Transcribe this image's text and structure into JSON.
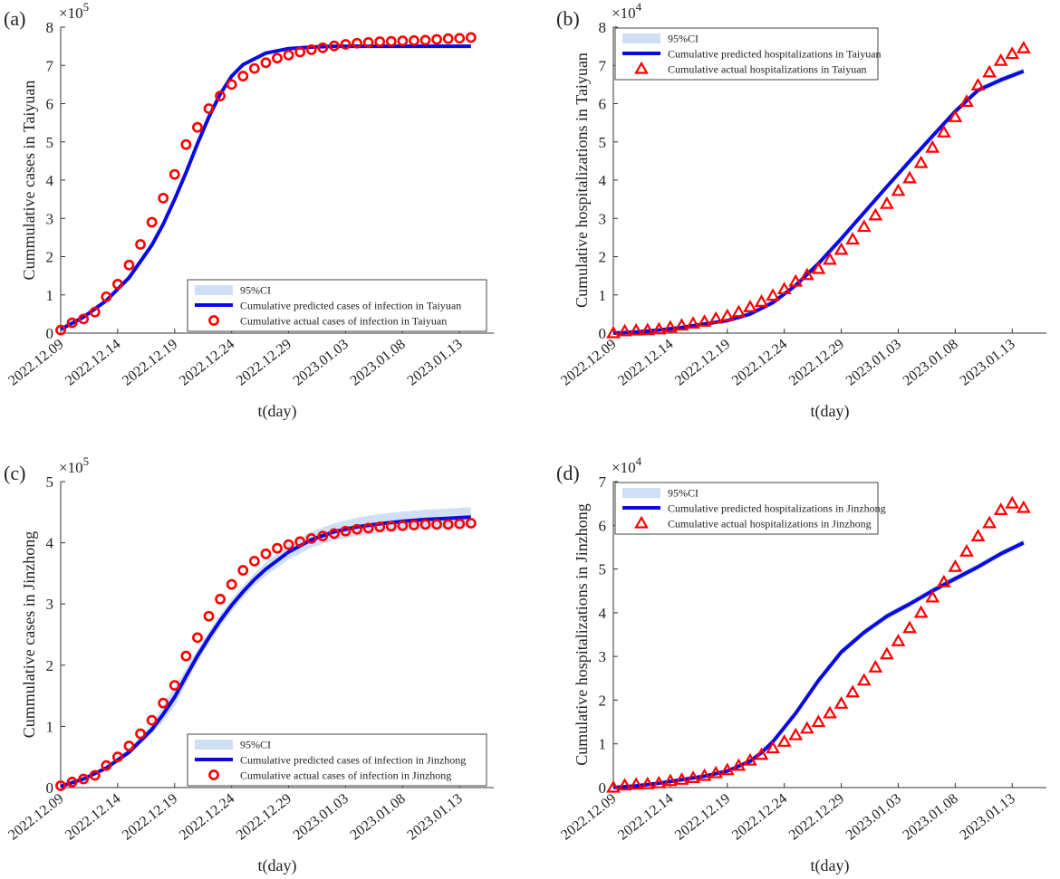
{
  "chart_data": [
    {
      "id": "a",
      "panel_label": "(a)",
      "type": "line",
      "x_tick_labels": [
        "2022.12.09",
        "2022.12.14",
        "2022.12.19",
        "2022.12.24",
        "2022.12.29",
        "2023.01.03",
        "2023.01.08",
        "2023.01.13"
      ],
      "xlabel": "t(day)",
      "ylabel": "Cummulative cases in Taiyuan",
      "ylim": [
        0,
        8
      ],
      "y_ticks": [
        0,
        1,
        2,
        3,
        4,
        5,
        6,
        7,
        8
      ],
      "x_range": [
        0,
        38
      ],
      "scale_label": "×10",
      "scale_exp": "5",
      "marker": "circle",
      "legend_position": "bottom-right",
      "legend": {
        "ci": "95%CI",
        "predicted": "Cumulative predicted cases of infection in Taiyuan",
        "actual": "Cumulative actual cases of infection in Taiyuan"
      },
      "series": [
        {
          "name": "predicted",
          "x": [
            0,
            2,
            4,
            6,
            8,
            9,
            10,
            11,
            12,
            13,
            14,
            15,
            16,
            18,
            20,
            22,
            24,
            26,
            28,
            30,
            32,
            34,
            36
          ],
          "values": [
            0.1,
            0.42,
            0.85,
            1.45,
            2.3,
            2.85,
            3.5,
            4.2,
            4.95,
            5.65,
            6.25,
            6.72,
            7.02,
            7.32,
            7.44,
            7.48,
            7.5,
            7.5,
            7.5,
            7.5,
            7.5,
            7.5,
            7.5
          ]
        },
        {
          "name": "ci_upper",
          "x": [
            0,
            2,
            4,
            6,
            8,
            9,
            10,
            11,
            12,
            13,
            14,
            15,
            16,
            18,
            20,
            22,
            24,
            26,
            28,
            30,
            32,
            34,
            36
          ],
          "values": [
            0.12,
            0.46,
            0.9,
            1.52,
            2.38,
            2.93,
            3.58,
            4.28,
            5.03,
            5.72,
            6.32,
            6.78,
            7.07,
            7.36,
            7.48,
            7.53,
            7.55,
            7.55,
            7.55,
            7.55,
            7.55,
            7.55,
            7.55
          ]
        },
        {
          "name": "ci_lower",
          "x": [
            0,
            2,
            4,
            6,
            8,
            9,
            10,
            11,
            12,
            13,
            14,
            15,
            16,
            18,
            20,
            22,
            24,
            26,
            28,
            30,
            32,
            34,
            36
          ],
          "values": [
            0.08,
            0.38,
            0.8,
            1.38,
            2.22,
            2.77,
            3.42,
            4.12,
            4.87,
            5.58,
            6.18,
            6.66,
            6.97,
            7.28,
            7.4,
            7.44,
            7.46,
            7.46,
            7.46,
            7.46,
            7.46,
            7.46,
            7.46
          ]
        },
        {
          "name": "actual",
          "x": [
            0,
            1,
            2,
            3,
            4,
            5,
            6,
            7,
            8,
            9,
            10,
            11,
            12,
            13,
            14,
            15,
            16,
            17,
            18,
            19,
            20,
            21,
            22,
            23,
            24,
            25,
            26,
            27,
            28,
            29,
            30,
            31,
            32,
            33,
            34,
            35,
            36
          ],
          "values": [
            0.08,
            0.27,
            0.37,
            0.55,
            0.95,
            1.28,
            1.78,
            2.32,
            2.9,
            3.53,
            4.15,
            4.93,
            5.38,
            5.87,
            6.2,
            6.5,
            6.72,
            6.92,
            7.07,
            7.19,
            7.27,
            7.35,
            7.41,
            7.46,
            7.51,
            7.55,
            7.58,
            7.6,
            7.62,
            7.63,
            7.64,
            7.65,
            7.66,
            7.68,
            7.7,
            7.71,
            7.73
          ]
        }
      ]
    },
    {
      "id": "b",
      "panel_label": "(b)",
      "type": "line",
      "x_tick_labels": [
        "2022.12.09",
        "2022.12.14",
        "2022.12.19",
        "2022.12.24",
        "2022.12.29",
        "2023.01.03",
        "2023.01.08",
        "2023.01.13"
      ],
      "xlabel": "t(day)",
      "ylabel": "Cumulative hospitalizations in Taiyuan",
      "ylim": [
        0,
        8
      ],
      "y_ticks": [
        0,
        1,
        2,
        3,
        4,
        5,
        6,
        7,
        8
      ],
      "x_range": [
        0,
        38
      ],
      "scale_label": "×10",
      "scale_exp": "4",
      "marker": "triangle",
      "legend_position": "top-left",
      "legend": {
        "ci": "95%CI",
        "predicted": "Cumulative predicted hospitalizations in Taiyuan",
        "actual": "Cumulative actual hospitalizations in Taiyuan"
      },
      "series": [
        {
          "name": "predicted",
          "x": [
            0,
            2,
            4,
            6,
            8,
            10,
            12,
            14,
            16,
            18,
            20,
            22,
            24,
            26,
            28,
            30,
            32,
            34,
            36
          ],
          "values": [
            0.0,
            0.03,
            0.08,
            0.15,
            0.24,
            0.33,
            0.5,
            0.8,
            1.25,
            1.82,
            2.47,
            3.15,
            3.83,
            4.5,
            5.15,
            5.8,
            6.35,
            6.62,
            6.85
          ]
        },
        {
          "name": "ci_upper",
          "x": [
            0,
            2,
            4,
            6,
            8,
            10,
            12,
            14,
            16,
            18,
            20,
            22,
            24,
            26,
            28,
            30,
            32,
            34,
            36
          ],
          "values": [
            0.0,
            0.04,
            0.1,
            0.18,
            0.28,
            0.38,
            0.56,
            0.87,
            1.32,
            1.89,
            2.54,
            3.22,
            3.9,
            4.57,
            5.22,
            5.87,
            6.42,
            6.7,
            6.92
          ]
        },
        {
          "name": "ci_lower",
          "x": [
            0,
            2,
            4,
            6,
            8,
            10,
            12,
            14,
            16,
            18,
            20,
            22,
            24,
            26,
            28,
            30,
            32,
            34,
            36
          ],
          "values": [
            0.0,
            0.02,
            0.06,
            0.12,
            0.2,
            0.28,
            0.44,
            0.73,
            1.18,
            1.75,
            2.4,
            3.08,
            3.76,
            4.43,
            5.08,
            5.73,
            6.28,
            6.54,
            6.78
          ]
        },
        {
          "name": "actual",
          "x": [
            0,
            1,
            2,
            3,
            4,
            5,
            6,
            7,
            8,
            9,
            10,
            11,
            12,
            13,
            14,
            15,
            16,
            17,
            18,
            19,
            20,
            21,
            22,
            23,
            24,
            25,
            26,
            27,
            28,
            29,
            30,
            31,
            32,
            33,
            34,
            35,
            36
          ],
          "values": [
            0.0,
            0.05,
            0.07,
            0.08,
            0.1,
            0.15,
            0.2,
            0.25,
            0.3,
            0.38,
            0.45,
            0.55,
            0.68,
            0.82,
            0.98,
            1.15,
            1.35,
            1.52,
            1.68,
            1.92,
            2.18,
            2.45,
            2.78,
            3.08,
            3.38,
            3.72,
            4.05,
            4.45,
            4.85,
            5.25,
            5.65,
            6.05,
            6.48,
            6.82,
            7.12,
            7.3,
            7.45
          ]
        }
      ]
    },
    {
      "id": "c",
      "panel_label": "(c)",
      "type": "line",
      "x_tick_labels": [
        "2022.12.09",
        "2022.12.14",
        "2022.12.19",
        "2022.12.24",
        "2022.12.29",
        "2023.01.03",
        "2023.01.08",
        "2023.01.13"
      ],
      "xlabel": "t(day)",
      "ylabel": "Cummulative cases in Jinzhong",
      "ylim": [
        0,
        5
      ],
      "y_ticks": [
        0,
        1,
        2,
        3,
        4,
        5
      ],
      "x_range": [
        0,
        38
      ],
      "scale_label": "×10",
      "scale_exp": "5",
      "marker": "circle",
      "legend_position": "bottom-right",
      "legend": {
        "ci": "95%CI",
        "predicted": "Cumulative predicted cases of infection in Jinzhong",
        "actual": "Cumulative actual cases of infection in Jinzhong"
      },
      "series": [
        {
          "name": "predicted",
          "x": [
            0,
            2,
            4,
            6,
            8,
            9,
            10,
            11,
            12,
            13,
            14,
            15,
            16,
            17,
            18,
            20,
            22,
            24,
            26,
            28,
            30,
            32,
            34,
            36
          ],
          "values": [
            0.02,
            0.14,
            0.32,
            0.58,
            0.95,
            1.2,
            1.48,
            1.82,
            2.15,
            2.45,
            2.73,
            2.98,
            3.2,
            3.4,
            3.57,
            3.85,
            4.05,
            4.18,
            4.26,
            4.31,
            4.35,
            4.38,
            4.4,
            4.42
          ]
        },
        {
          "name": "ci_upper",
          "x": [
            0,
            2,
            4,
            6,
            8,
            9,
            10,
            11,
            12,
            13,
            14,
            15,
            16,
            17,
            18,
            20,
            22,
            24,
            26,
            28,
            30,
            32,
            34,
            36
          ],
          "values": [
            0.03,
            0.16,
            0.36,
            0.64,
            1.03,
            1.35,
            1.65,
            1.95,
            2.25,
            2.55,
            2.83,
            3.08,
            3.3,
            3.5,
            3.68,
            3.97,
            4.18,
            4.32,
            4.41,
            4.47,
            4.51,
            4.54,
            4.56,
            4.58
          ]
        },
        {
          "name": "ci_lower",
          "x": [
            0,
            2,
            4,
            6,
            8,
            9,
            10,
            11,
            12,
            13,
            14,
            15,
            16,
            17,
            18,
            20,
            22,
            24,
            26,
            28,
            30,
            32,
            34,
            36
          ],
          "values": [
            0.01,
            0.12,
            0.29,
            0.53,
            0.88,
            1.08,
            1.33,
            1.7,
            2.05,
            2.36,
            2.63,
            2.88,
            3.1,
            3.3,
            3.46,
            3.73,
            3.92,
            4.04,
            4.11,
            4.16,
            4.2,
            4.22,
            4.24,
            4.26
          ]
        },
        {
          "name": "actual",
          "x": [
            0,
            1,
            2,
            3,
            4,
            5,
            6,
            7,
            8,
            9,
            10,
            11,
            12,
            13,
            14,
            15,
            16,
            17,
            18,
            19,
            20,
            21,
            22,
            23,
            24,
            25,
            26,
            27,
            28,
            29,
            30,
            31,
            32,
            33,
            34,
            35,
            36
          ],
          "values": [
            0.03,
            0.09,
            0.14,
            0.2,
            0.36,
            0.5,
            0.68,
            0.88,
            1.1,
            1.38,
            1.67,
            2.15,
            2.45,
            2.8,
            3.08,
            3.32,
            3.55,
            3.7,
            3.82,
            3.91,
            3.97,
            4.02,
            4.07,
            4.11,
            4.15,
            4.19,
            4.22,
            4.24,
            4.26,
            4.27,
            4.28,
            4.29,
            4.3,
            4.3,
            4.3,
            4.31,
            4.32
          ]
        }
      ]
    },
    {
      "id": "d",
      "panel_label": "(d)",
      "type": "line",
      "x_tick_labels": [
        "2022.12.09",
        "2022.12.14",
        "2022.12.19",
        "2022.12.24",
        "2022.12.29",
        "2023.01.03",
        "2023.01.08",
        "2023.01.13"
      ],
      "xlabel": "t(day)",
      "ylabel": "Cumulative hospitalizations in Jinzhong",
      "ylim": [
        0,
        7
      ],
      "y_ticks": [
        0,
        1,
        2,
        3,
        4,
        5,
        6,
        7
      ],
      "x_range": [
        0,
        38
      ],
      "scale_label": "×10",
      "scale_exp": "4",
      "marker": "triangle",
      "legend_position": "top-left",
      "legend": {
        "ci": "95%CI",
        "predicted": "Cumulative predicted hospitalizations in Jinzhong",
        "actual": "Cumulative actual hospitalizations in Jinzhong"
      },
      "series": [
        {
          "name": "predicted",
          "x": [
            0,
            2,
            4,
            6,
            8,
            10,
            12,
            13,
            14,
            16,
            18,
            20,
            22,
            24,
            26,
            28,
            30,
            32,
            34,
            36
          ],
          "values": [
            0.0,
            0.04,
            0.1,
            0.18,
            0.26,
            0.38,
            0.6,
            0.8,
            1.05,
            1.7,
            2.45,
            3.1,
            3.55,
            3.92,
            4.2,
            4.5,
            4.78,
            5.05,
            5.35,
            5.6
          ]
        },
        {
          "name": "ci_upper",
          "x": [
            0,
            2,
            4,
            6,
            8,
            10,
            12,
            13,
            14,
            16,
            18,
            20,
            22,
            24,
            26,
            28,
            30,
            32,
            34,
            36
          ],
          "values": [
            0.0,
            0.05,
            0.12,
            0.21,
            0.3,
            0.42,
            0.65,
            0.86,
            1.11,
            1.77,
            2.52,
            3.17,
            3.62,
            3.99,
            4.27,
            4.57,
            4.85,
            5.12,
            5.42,
            5.67
          ]
        },
        {
          "name": "ci_lower",
          "x": [
            0,
            2,
            4,
            6,
            8,
            10,
            12,
            13,
            14,
            16,
            18,
            20,
            22,
            24,
            26,
            28,
            30,
            32,
            34,
            36
          ],
          "values": [
            0.0,
            0.03,
            0.08,
            0.15,
            0.22,
            0.34,
            0.55,
            0.74,
            0.99,
            1.63,
            2.38,
            3.03,
            3.48,
            3.85,
            4.13,
            4.43,
            4.71,
            4.98,
            5.28,
            5.53
          ]
        },
        {
          "name": "actual",
          "x": [
            0,
            1,
            2,
            3,
            4,
            5,
            6,
            7,
            8,
            9,
            10,
            11,
            12,
            13,
            14,
            15,
            16,
            17,
            18,
            19,
            20,
            21,
            22,
            23,
            24,
            25,
            26,
            27,
            28,
            29,
            30,
            31,
            32,
            33,
            34,
            35,
            36
          ],
          "values": [
            0.0,
            0.05,
            0.07,
            0.08,
            0.1,
            0.15,
            0.18,
            0.22,
            0.27,
            0.33,
            0.4,
            0.5,
            0.62,
            0.75,
            0.9,
            1.05,
            1.2,
            1.35,
            1.5,
            1.7,
            1.92,
            2.18,
            2.45,
            2.75,
            3.05,
            3.35,
            3.65,
            4.0,
            4.35,
            4.7,
            5.05,
            5.4,
            5.75,
            6.05,
            6.35,
            6.5,
            6.4
          ]
        }
      ]
    }
  ]
}
